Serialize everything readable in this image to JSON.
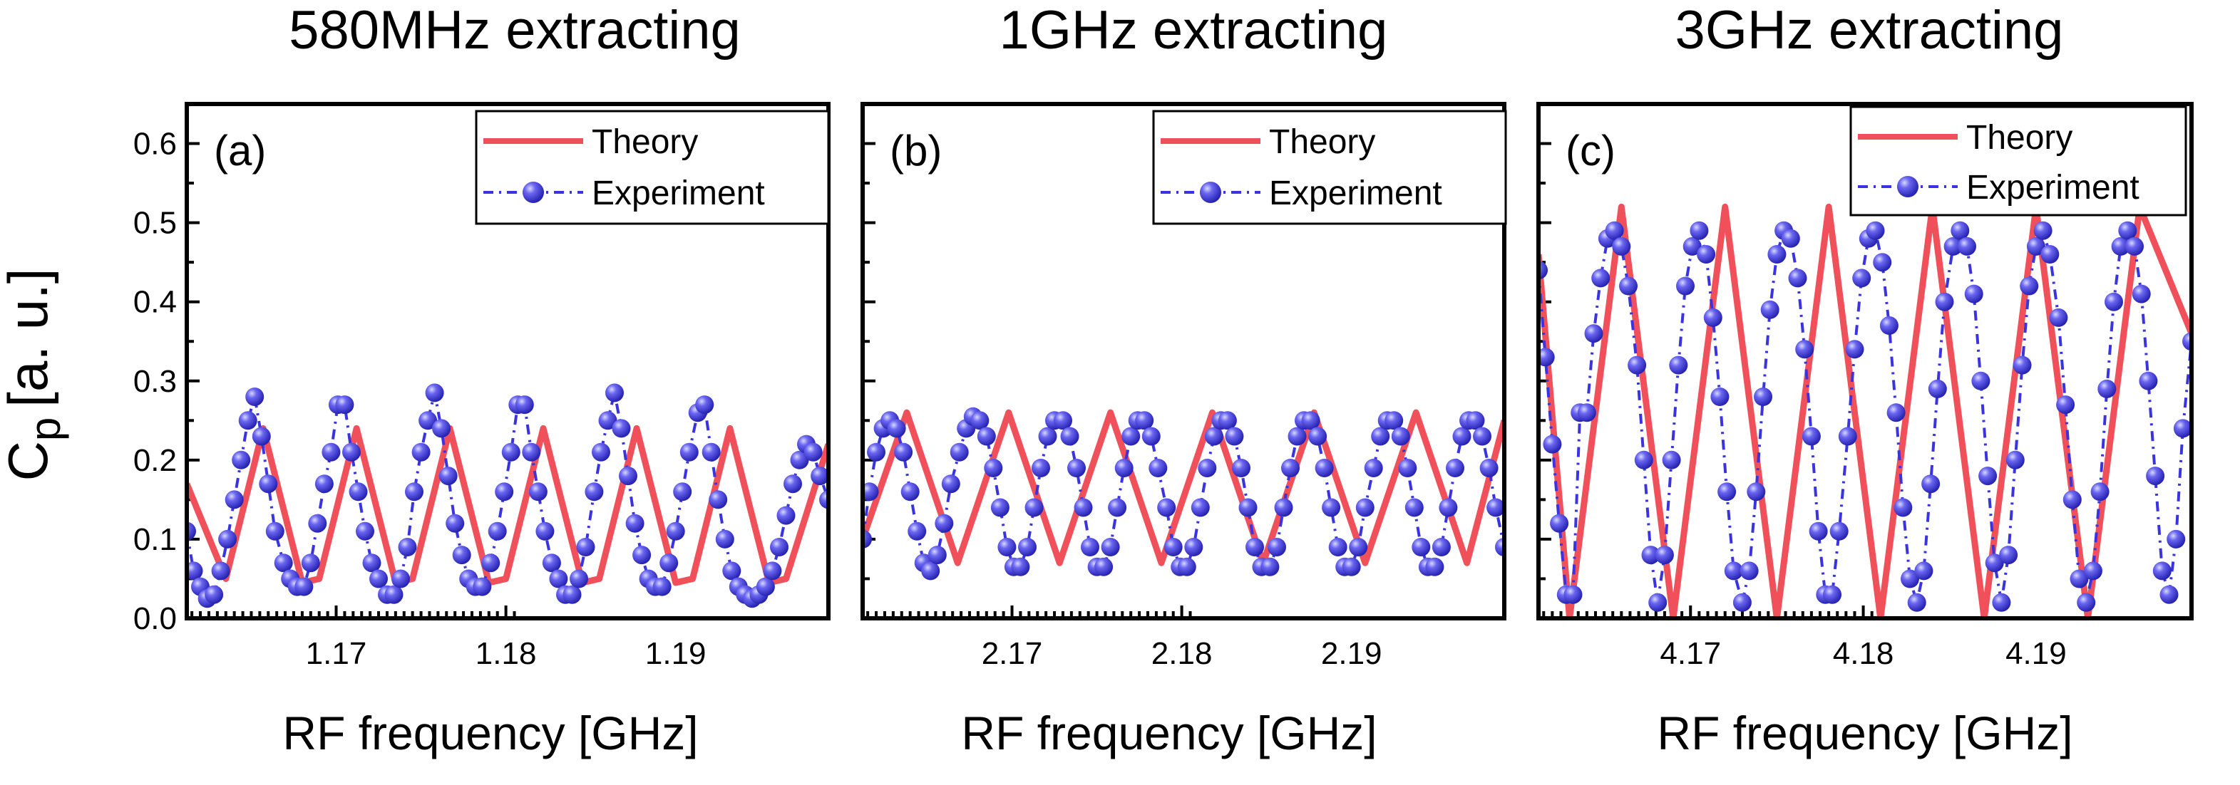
{
  "figure": {
    "ylabel_main": "C",
    "ylabel_sub": "p",
    "ylabel_units": "[a. u.]",
    "theory_label": "Theory",
    "experiment_label": "Experiment",
    "theory_color": "#f0505a",
    "experiment_color": "#3a34e0",
    "yticks": [
      "0.0",
      "0.1",
      "0.2",
      "0.3",
      "0.4",
      "0.5",
      "0.6"
    ]
  },
  "chart_data": [
    {
      "type": "line",
      "panel_label": "(a)",
      "title": "580MHz extracting",
      "xlabel": "RF frequency [GHz]",
      "ylabel": "Cp [a. u.]",
      "xlim": [
        1.1612,
        1.199
      ],
      "ylim": [
        0.0,
        0.65
      ],
      "xticks": [
        1.17,
        1.18,
        1.19
      ],
      "xtick_labels": [
        "1.17",
        "1.18",
        "1.19"
      ],
      "legend": "top-right",
      "series": [
        {
          "name": "Theory",
          "style": "solid",
          "x": [
            1.1612,
            1.1635,
            1.1657,
            1.168,
            1.169,
            1.1712,
            1.1735,
            1.1745,
            1.1767,
            1.179,
            1.18,
            1.1822,
            1.1845,
            1.1855,
            1.1877,
            1.19,
            1.191,
            1.1932,
            1.1955,
            1.1965,
            1.199
          ],
          "y": [
            0.17,
            0.05,
            0.24,
            0.045,
            0.05,
            0.24,
            0.045,
            0.05,
            0.24,
            0.045,
            0.05,
            0.24,
            0.045,
            0.05,
            0.24,
            0.045,
            0.05,
            0.24,
            0.045,
            0.05,
            0.22
          ]
        },
        {
          "name": "Experiment",
          "style": "dash-dot-markers",
          "x": [
            1.1612,
            1.1616,
            1.162,
            1.1624,
            1.1628,
            1.1632,
            1.1636,
            1.164,
            1.1644,
            1.1648,
            1.1652,
            1.1656,
            1.166,
            1.1664,
            1.1669,
            1.1673,
            1.1677,
            1.1681,
            1.1685,
            1.1689,
            1.1693,
            1.1697,
            1.1701,
            1.1705,
            1.1709,
            1.1713,
            1.1717,
            1.1721,
            1.1725,
            1.173,
            1.1734,
            1.1738,
            1.1742,
            1.1746,
            1.175,
            1.1754,
            1.1758,
            1.1762,
            1.1766,
            1.177,
            1.1774,
            1.1778,
            1.1782,
            1.1786,
            1.1791,
            1.1795,
            1.1799,
            1.1803,
            1.1807,
            1.1811,
            1.1815,
            1.1819,
            1.1823,
            1.1827,
            1.1831,
            1.1835,
            1.1839,
            1.1843,
            1.1847,
            1.1852,
            1.1856,
            1.186,
            1.1864,
            1.1868,
            1.1872,
            1.1876,
            1.188,
            1.1884,
            1.1888,
            1.1892,
            1.1896,
            1.19,
            1.1904,
            1.1908,
            1.1913,
            1.1917,
            1.1921,
            1.1925,
            1.1929,
            1.1933,
            1.1937,
            1.1941,
            1.1945,
            1.1949,
            1.1953,
            1.1957,
            1.1961,
            1.1965,
            1.1969,
            1.1973,
            1.1977,
            1.1981,
            1.1985,
            1.199
          ],
          "y": [
            0.11,
            0.06,
            0.04,
            0.025,
            0.03,
            0.06,
            0.1,
            0.15,
            0.2,
            0.25,
            0.28,
            0.23,
            0.17,
            0.11,
            0.07,
            0.05,
            0.04,
            0.04,
            0.07,
            0.12,
            0.17,
            0.21,
            0.27,
            0.27,
            0.21,
            0.16,
            0.11,
            0.07,
            0.05,
            0.03,
            0.03,
            0.05,
            0.09,
            0.16,
            0.21,
            0.25,
            0.285,
            0.24,
            0.18,
            0.12,
            0.08,
            0.05,
            0.04,
            0.04,
            0.07,
            0.11,
            0.16,
            0.21,
            0.27,
            0.27,
            0.21,
            0.16,
            0.11,
            0.07,
            0.05,
            0.03,
            0.03,
            0.05,
            0.09,
            0.16,
            0.21,
            0.25,
            0.285,
            0.24,
            0.18,
            0.12,
            0.08,
            0.05,
            0.04,
            0.04,
            0.07,
            0.11,
            0.16,
            0.21,
            0.26,
            0.27,
            0.21,
            0.15,
            0.1,
            0.06,
            0.04,
            0.03,
            0.025,
            0.03,
            0.04,
            0.06,
            0.09,
            0.13,
            0.17,
            0.2,
            0.22,
            0.21,
            0.18,
            0.15
          ]
        }
      ]
    },
    {
      "type": "line",
      "panel_label": "(b)",
      "title": "1GHz extracting",
      "xlabel": "RF frequency [GHz]",
      "ylabel": "Cp [a. u.]",
      "xlim": [
        2.1612,
        2.199
      ],
      "ylim": [
        0.0,
        0.65
      ],
      "xticks": [
        2.17,
        2.18,
        2.19
      ],
      "xtick_labels": [
        "2.17",
        "2.18",
        "2.19"
      ],
      "legend": "top-right",
      "series": [
        {
          "name": "Theory",
          "style": "solid",
          "x": [
            2.1612,
            2.1638,
            2.1668,
            2.1698,
            2.1728,
            2.1758,
            2.1788,
            2.1818,
            2.1848,
            2.1878,
            2.1908,
            2.1938,
            2.1968,
            2.199
          ],
          "y": [
            0.1,
            0.26,
            0.07,
            0.26,
            0.07,
            0.26,
            0.07,
            0.26,
            0.07,
            0.26,
            0.07,
            0.26,
            0.07,
            0.25
          ]
        },
        {
          "name": "Experiment",
          "style": "dash-dot-markers",
          "x": [
            2.1612,
            2.1616,
            2.162,
            2.1624,
            2.1628,
            2.1632,
            2.1636,
            2.164,
            2.1644,
            2.1648,
            2.1652,
            2.1656,
            2.166,
            2.1664,
            2.1669,
            2.1673,
            2.1677,
            2.1681,
            2.1685,
            2.1689,
            2.1693,
            2.1697,
            2.1701,
            2.1705,
            2.1709,
            2.1713,
            2.1717,
            2.1721,
            2.1725,
            2.173,
            2.1734,
            2.1738,
            2.1742,
            2.1746,
            2.175,
            2.1754,
            2.1758,
            2.1762,
            2.1766,
            2.177,
            2.1774,
            2.1778,
            2.1782,
            2.1786,
            2.1791,
            2.1795,
            2.1799,
            2.1803,
            2.1807,
            2.1811,
            2.1815,
            2.1819,
            2.1823,
            2.1827,
            2.1831,
            2.1835,
            2.1839,
            2.1843,
            2.1847,
            2.1852,
            2.1856,
            2.186,
            2.1864,
            2.1868,
            2.1872,
            2.1876,
            2.188,
            2.1884,
            2.1888,
            2.1892,
            2.1896,
            2.19,
            2.1904,
            2.1908,
            2.1913,
            2.1917,
            2.1921,
            2.1925,
            2.1929,
            2.1933,
            2.1937,
            2.1941,
            2.1945,
            2.1949,
            2.1953,
            2.1957,
            2.1961,
            2.1965,
            2.1969,
            2.1973,
            2.1977,
            2.1981,
            2.1985,
            2.199
          ],
          "y": [
            0.1,
            0.16,
            0.21,
            0.24,
            0.25,
            0.24,
            0.21,
            0.16,
            0.11,
            0.07,
            0.06,
            0.08,
            0.12,
            0.17,
            0.21,
            0.24,
            0.255,
            0.25,
            0.23,
            0.19,
            0.14,
            0.09,
            0.065,
            0.065,
            0.09,
            0.14,
            0.19,
            0.23,
            0.25,
            0.25,
            0.23,
            0.19,
            0.14,
            0.09,
            0.065,
            0.065,
            0.09,
            0.14,
            0.19,
            0.23,
            0.25,
            0.25,
            0.23,
            0.19,
            0.14,
            0.09,
            0.065,
            0.065,
            0.09,
            0.14,
            0.19,
            0.23,
            0.25,
            0.25,
            0.23,
            0.19,
            0.14,
            0.09,
            0.065,
            0.065,
            0.09,
            0.14,
            0.19,
            0.23,
            0.25,
            0.25,
            0.23,
            0.19,
            0.14,
            0.09,
            0.065,
            0.065,
            0.09,
            0.14,
            0.19,
            0.23,
            0.25,
            0.25,
            0.23,
            0.19,
            0.14,
            0.09,
            0.065,
            0.065,
            0.09,
            0.14,
            0.19,
            0.23,
            0.25,
            0.25,
            0.23,
            0.19,
            0.14,
            0.09
          ]
        }
      ]
    },
    {
      "type": "line",
      "panel_label": "(c)",
      "title": "3GHz extracting",
      "xlabel": "RF frequency [GHz]",
      "ylabel": "Cp [a. u.]",
      "xlim": [
        4.1612,
        4.199
      ],
      "ylim": [
        0.0,
        0.65
      ],
      "xticks": [
        4.17,
        4.18,
        4.19
      ],
      "xtick_labels": [
        "4.17",
        "4.18",
        "4.19"
      ],
      "legend": "top-right",
      "series": [
        {
          "name": "Theory",
          "style": "solid",
          "x": [
            4.1612,
            4.163,
            4.166,
            4.169,
            4.172,
            4.175,
            4.178,
            4.181,
            4.184,
            4.187,
            4.19,
            4.193,
            4.196,
            4.199
          ],
          "y": [
            0.46,
            0.0,
            0.52,
            0.0,
            0.52,
            0.0,
            0.52,
            0.0,
            0.52,
            0.0,
            0.52,
            0.0,
            0.52,
            0.36
          ]
        },
        {
          "name": "Experiment",
          "style": "dash-dot-markers",
          "x": [
            4.1612,
            4.1616,
            4.162,
            4.1624,
            4.1628,
            4.1632,
            4.1636,
            4.164,
            4.1644,
            4.1648,
            4.1652,
            4.1656,
            4.166,
            4.1664,
            4.1669,
            4.1673,
            4.1677,
            4.1681,
            4.1685,
            4.1689,
            4.1693,
            4.1697,
            4.1701,
            4.1705,
            4.1709,
            4.1713,
            4.1717,
            4.1721,
            4.1725,
            4.173,
            4.1734,
            4.1738,
            4.1742,
            4.1746,
            4.175,
            4.1754,
            4.1758,
            4.1762,
            4.1766,
            4.177,
            4.1774,
            4.1778,
            4.1782,
            4.1786,
            4.1791,
            4.1795,
            4.1799,
            4.1803,
            4.1807,
            4.1811,
            4.1815,
            4.1819,
            4.1823,
            4.1827,
            4.1831,
            4.1835,
            4.1839,
            4.1843,
            4.1847,
            4.1852,
            4.1856,
            4.186,
            4.1864,
            4.1868,
            4.1872,
            4.1876,
            4.188,
            4.1884,
            4.1888,
            4.1892,
            4.1896,
            4.19,
            4.1904,
            4.1908,
            4.1913,
            4.1917,
            4.1921,
            4.1925,
            4.1929,
            4.1933,
            4.1937,
            4.1941,
            4.1945,
            4.1949,
            4.1953,
            4.1957,
            4.1961,
            4.1965,
            4.1969,
            4.1973,
            4.1977,
            4.1981,
            4.1985,
            4.199
          ],
          "y": [
            0.44,
            0.33,
            0.22,
            0.12,
            0.03,
            0.03,
            0.26,
            0.26,
            0.36,
            0.43,
            0.48,
            0.49,
            0.47,
            0.42,
            0.32,
            0.2,
            0.08,
            0.02,
            0.08,
            0.2,
            0.32,
            0.42,
            0.47,
            0.49,
            0.46,
            0.38,
            0.28,
            0.16,
            0.06,
            0.02,
            0.06,
            0.16,
            0.28,
            0.39,
            0.46,
            0.49,
            0.48,
            0.43,
            0.34,
            0.23,
            0.11,
            0.03,
            0.03,
            0.11,
            0.23,
            0.34,
            0.43,
            0.48,
            0.49,
            0.45,
            0.37,
            0.26,
            0.14,
            0.05,
            0.02,
            0.06,
            0.17,
            0.29,
            0.4,
            0.47,
            0.49,
            0.47,
            0.41,
            0.3,
            0.18,
            0.07,
            0.02,
            0.08,
            0.2,
            0.32,
            0.42,
            0.47,
            0.49,
            0.46,
            0.38,
            0.27,
            0.15,
            0.05,
            0.02,
            0.06,
            0.16,
            0.29,
            0.4,
            0.47,
            0.49,
            0.47,
            0.41,
            0.3,
            0.18,
            0.06,
            0.03,
            0.1,
            0.24,
            0.35
          ]
        }
      ]
    }
  ]
}
